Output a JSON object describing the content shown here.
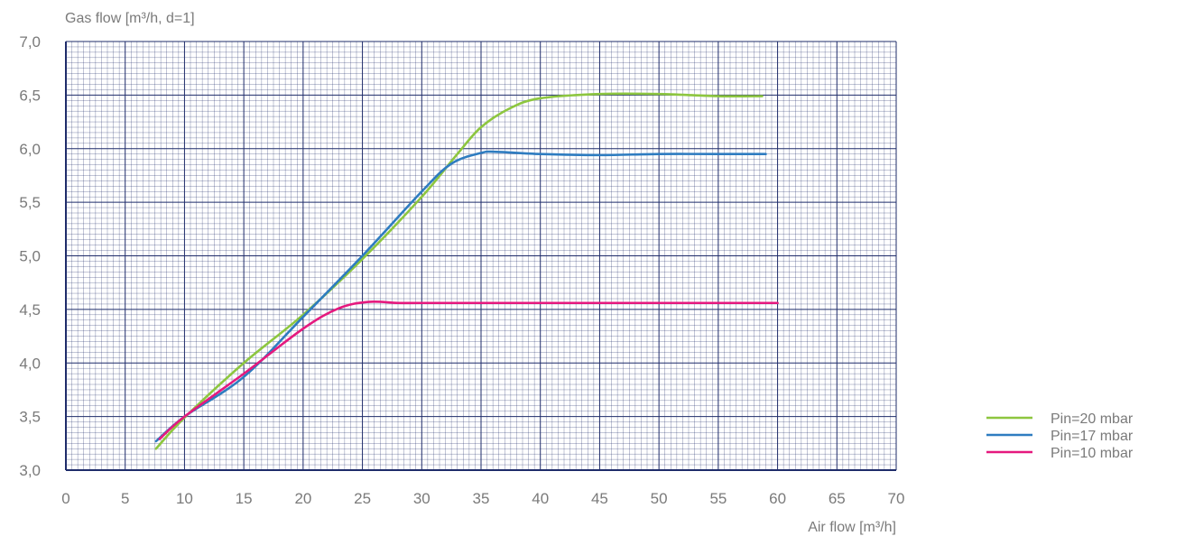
{
  "chart_data": {
    "type": "line",
    "ylabel": "Gas flow [m³/h, d=1]",
    "xlabel": "Air flow [m³/h]",
    "xlim": [
      0,
      70
    ],
    "ylim": [
      3.0,
      7.0
    ],
    "x_ticks": [
      "0",
      "5",
      "10",
      "15",
      "20",
      "25",
      "30",
      "35",
      "40",
      "45",
      "50",
      "55",
      "60",
      "65",
      "70"
    ],
    "y_ticks": [
      "3,0",
      "3,5",
      "4,0",
      "4,5",
      "5,0",
      "5,5",
      "6,0",
      "6,5",
      "7,0"
    ],
    "grid": true,
    "legend_position": "bottom-right",
    "grid_color": "#1f2c6a",
    "series": [
      {
        "name": "Pin=20 mbar",
        "color": "#8dc63f",
        "points": [
          [
            7.6,
            3.2
          ],
          [
            10,
            3.49
          ],
          [
            15,
            4.0
          ],
          [
            20,
            4.45
          ],
          [
            25,
            4.97
          ],
          [
            30,
            5.55
          ],
          [
            33,
            5.95
          ],
          [
            35,
            6.2
          ],
          [
            37.5,
            6.38
          ],
          [
            40,
            6.47
          ],
          [
            45,
            6.51
          ],
          [
            50,
            6.51
          ],
          [
            55,
            6.49
          ],
          [
            58.7,
            6.49
          ]
        ]
      },
      {
        "name": "Pin=17 mbar",
        "color": "#2e7cc0",
        "points": [
          [
            7.6,
            3.27
          ],
          [
            10,
            3.5
          ],
          [
            15,
            3.87
          ],
          [
            20,
            4.43
          ],
          [
            25,
            5.0
          ],
          [
            30,
            5.6
          ],
          [
            32.5,
            5.86
          ],
          [
            35,
            5.96
          ],
          [
            36.3,
            5.97
          ],
          [
            40,
            5.95
          ],
          [
            45,
            5.94
          ],
          [
            50,
            5.95
          ],
          [
            55,
            5.95
          ],
          [
            59,
            5.95
          ]
        ]
      },
      {
        "name": "Pin=10 mbar",
        "color": "#e5197e",
        "points": [
          [
            7.9,
            3.29
          ],
          [
            10,
            3.5
          ],
          [
            15,
            3.9
          ],
          [
            20,
            4.32
          ],
          [
            23,
            4.51
          ],
          [
            25.5,
            4.57
          ],
          [
            28,
            4.56
          ],
          [
            30,
            4.56
          ],
          [
            40,
            4.56
          ],
          [
            50,
            4.56
          ],
          [
            60,
            4.56
          ]
        ]
      }
    ]
  }
}
